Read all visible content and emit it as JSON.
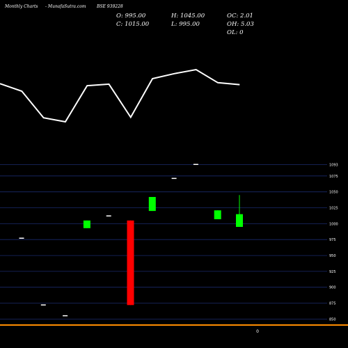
{
  "header": {
    "brand": "Monthly Charts",
    "source": "- MunafaSutra.com",
    "symbol": "BSE 939228"
  },
  "ohlc": {
    "open": "O: 995.00",
    "close": "C: 1015.00",
    "high": "H: 1045.00",
    "low": "L: 995.00",
    "oc": "OC: 2.01",
    "oh": "OH: 5.03",
    "ol": "OL: 0"
  },
  "x_marker": "0",
  "colors": {
    "background": "#000000",
    "up": "#00ff00",
    "down": "#ff0000",
    "flat": "#ffffff",
    "grid": "#1a2a6c",
    "baseline": "#ff8c00",
    "line": "#ffffff"
  },
  "chart_data": [
    {
      "type": "line",
      "description": "indicator line, no axis",
      "values": [
        0.8,
        0.65,
        0.12,
        0.04,
        0.76,
        0.79,
        0.13,
        0.9,
        1.0,
        1.08,
        0.82,
        0.78
      ]
    },
    {
      "type": "candlestick",
      "ylim": [
        845,
        1100
      ],
      "y_ticks": [
        1093,
        1075,
        1050,
        1025,
        1000,
        975,
        950,
        925,
        900,
        875,
        850
      ],
      "grid": true,
      "candles": [
        {
          "open": 978,
          "close": 978,
          "high": 978,
          "low": 978
        },
        {
          "open": 873,
          "close": 873,
          "high": 873,
          "low": 873
        },
        {
          "open": 856,
          "close": 856,
          "high": 856,
          "low": 856
        },
        {
          "open": 993,
          "close": 1005,
          "high": 1005,
          "low": 993
        },
        {
          "open": 1013,
          "close": 1013,
          "high": 1013,
          "low": 1013
        },
        {
          "open": 1005,
          "close": 872,
          "high": 1005,
          "low": 872
        },
        {
          "open": 1020,
          "close": 1042,
          "high": 1042,
          "low": 1020
        },
        {
          "open": 1072,
          "close": 1072,
          "high": 1072,
          "low": 1072
        },
        {
          "open": 1094,
          "close": 1094,
          "high": 1094,
          "low": 1094
        },
        {
          "open": 1007,
          "close": 1021,
          "high": 1021,
          "low": 1007
        },
        {
          "open": 995,
          "close": 1015,
          "high": 1045,
          "low": 995
        }
      ]
    }
  ]
}
